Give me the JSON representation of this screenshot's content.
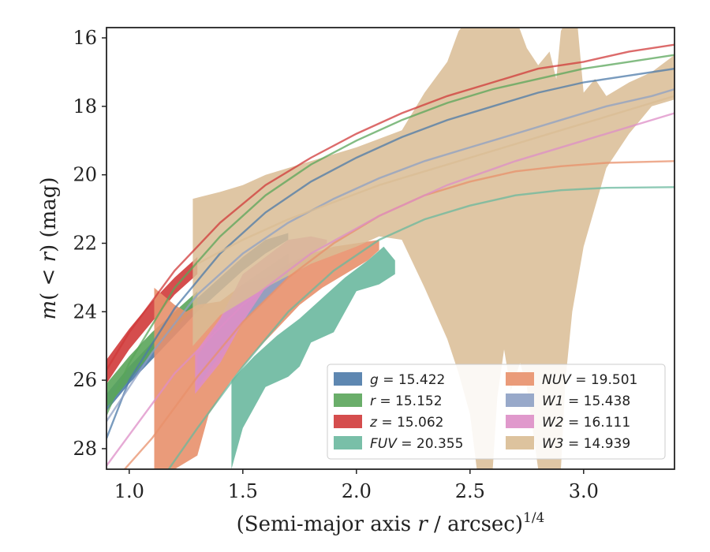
{
  "chart_data": {
    "type": "area",
    "title": "",
    "xlabel": {
      "pre": "(Semi-major axis ",
      "var": "r",
      "post": " / arcsec)",
      "sup": "1/4"
    },
    "ylabel": {
      "pre": "",
      "var": "m",
      "mid": "( < ",
      "var2": "r",
      "post": ") (mag)"
    },
    "xlim": [
      0.9,
      3.4
    ],
    "ylim": [
      28.6,
      15.7
    ],
    "y_inverted": true,
    "xticks": [
      1.0,
      1.5,
      2.0,
      2.5,
      3.0
    ],
    "xtick_labels": [
      "1.0",
      "1.5",
      "2.0",
      "2.5",
      "3.0"
    ],
    "yticks": [
      16,
      18,
      20,
      22,
      24,
      26,
      28
    ],
    "ytick_labels": [
      "16",
      "18",
      "20",
      "22",
      "24",
      "26",
      "28"
    ],
    "legend_position": "lower-right",
    "series": [
      {
        "name": "g = 15.422",
        "band": "g",
        "value": "= 15.422",
        "color": "#4c7aa8",
        "model": [
          [
            0.9,
            27.7
          ],
          [
            1.0,
            26.0
          ],
          [
            1.2,
            23.9
          ],
          [
            1.4,
            22.3
          ],
          [
            1.6,
            21.1
          ],
          [
            1.8,
            20.2
          ],
          [
            2.0,
            19.5
          ],
          [
            2.2,
            18.9
          ],
          [
            2.4,
            18.4
          ],
          [
            2.6,
            18.0
          ],
          [
            2.8,
            17.6
          ],
          [
            3.0,
            17.3
          ],
          [
            3.2,
            17.1
          ],
          [
            3.4,
            16.9
          ]
        ],
        "upper": [
          [
            0.9,
            26.4
          ],
          [
            1.0,
            25.6
          ],
          [
            1.1,
            24.9
          ],
          [
            1.2,
            24.3
          ],
          [
            1.3,
            23.6
          ],
          [
            1.4,
            23.0
          ],
          [
            1.5,
            22.4
          ],
          [
            1.6,
            21.9
          ],
          [
            1.7,
            21.7
          ]
        ],
        "lower": [
          [
            0.9,
            26.9
          ],
          [
            1.0,
            26.1
          ],
          [
            1.1,
            25.4
          ],
          [
            1.2,
            24.7
          ],
          [
            1.3,
            24.0
          ],
          [
            1.4,
            23.4
          ],
          [
            1.5,
            22.8
          ],
          [
            1.6,
            22.3
          ],
          [
            1.7,
            21.9
          ]
        ]
      },
      {
        "name": "r = 15.152",
        "band": "r",
        "value": "= 15.152",
        "color": "#5aa55a",
        "model": [
          [
            0.9,
            27.0
          ],
          [
            1.0,
            25.5
          ],
          [
            1.2,
            23.3
          ],
          [
            1.4,
            21.8
          ],
          [
            1.6,
            20.6
          ],
          [
            1.8,
            19.7
          ],
          [
            2.0,
            19.0
          ],
          [
            2.2,
            18.4
          ],
          [
            2.4,
            17.9
          ],
          [
            2.6,
            17.5
          ],
          [
            2.8,
            17.2
          ],
          [
            3.0,
            16.9
          ],
          [
            3.2,
            16.7
          ],
          [
            3.4,
            16.5
          ]
        ],
        "upper": [
          [
            0.9,
            26.1
          ],
          [
            1.0,
            25.3
          ],
          [
            1.1,
            24.6
          ],
          [
            1.2,
            24.0
          ],
          [
            1.3,
            23.4
          ]
        ],
        "lower": [
          [
            0.9,
            26.8
          ],
          [
            1.0,
            26.0
          ],
          [
            1.1,
            25.2
          ],
          [
            1.2,
            24.5
          ],
          [
            1.3,
            23.8
          ]
        ]
      },
      {
        "name": "z = 15.062",
        "band": "z",
        "value": "= 15.062",
        "color": "#d03a3a",
        "model": [
          [
            0.9,
            25.7
          ],
          [
            1.0,
            24.6
          ],
          [
            1.2,
            22.8
          ],
          [
            1.4,
            21.4
          ],
          [
            1.6,
            20.3
          ],
          [
            1.8,
            19.5
          ],
          [
            2.0,
            18.8
          ],
          [
            2.2,
            18.2
          ],
          [
            2.4,
            17.7
          ],
          [
            2.6,
            17.3
          ],
          [
            2.8,
            16.9
          ],
          [
            3.0,
            16.7
          ],
          [
            3.2,
            16.4
          ],
          [
            3.4,
            16.2
          ]
        ],
        "upper": [
          [
            0.9,
            25.4
          ],
          [
            1.0,
            24.5
          ],
          [
            1.1,
            23.7
          ],
          [
            1.2,
            23.0
          ],
          [
            1.3,
            22.4
          ]
        ],
        "lower": [
          [
            0.9,
            26.1
          ],
          [
            1.0,
            25.1
          ],
          [
            1.1,
            24.3
          ],
          [
            1.2,
            23.5
          ],
          [
            1.3,
            22.9
          ]
        ]
      },
      {
        "name": "FUV = 20.355",
        "band": "FUV",
        "value": "= 20.355",
        "color": "#6ab89e",
        "model": [
          [
            0.9,
            30.5
          ],
          [
            1.1,
            29.3
          ],
          [
            1.3,
            27.4
          ],
          [
            1.5,
            25.6
          ],
          [
            1.7,
            24.0
          ],
          [
            1.9,
            22.8
          ],
          [
            2.1,
            21.9
          ],
          [
            2.3,
            21.3
          ],
          [
            2.5,
            20.9
          ],
          [
            2.7,
            20.6
          ],
          [
            2.9,
            20.45
          ],
          [
            3.1,
            20.38
          ],
          [
            3.4,
            20.36
          ]
        ],
        "upper": [
          [
            1.45,
            26.0
          ],
          [
            1.55,
            25.3
          ],
          [
            1.65,
            24.7
          ],
          [
            1.75,
            24.2
          ],
          [
            1.85,
            23.6
          ],
          [
            1.95,
            23.0
          ],
          [
            2.05,
            22.5
          ],
          [
            2.12,
            22.1
          ],
          [
            2.17,
            22.5
          ]
        ],
        "lower": [
          [
            1.45,
            28.6
          ],
          [
            1.5,
            27.4
          ],
          [
            1.55,
            26.8
          ],
          [
            1.6,
            26.2
          ],
          [
            1.7,
            25.9
          ],
          [
            1.75,
            25.6
          ],
          [
            1.8,
            24.9
          ],
          [
            1.9,
            24.6
          ],
          [
            2.0,
            23.4
          ],
          [
            2.1,
            23.2
          ],
          [
            2.17,
            22.9
          ]
        ]
      },
      {
        "name": "NUV = 19.501",
        "band": "NUV",
        "value": "= 19.501",
        "color": "#e8906b",
        "model": [
          [
            0.9,
            29.2
          ],
          [
            1.1,
            27.7
          ],
          [
            1.3,
            25.9
          ],
          [
            1.5,
            24.3
          ],
          [
            1.7,
            23.0
          ],
          [
            1.9,
            22.0
          ],
          [
            2.1,
            21.2
          ],
          [
            2.3,
            20.6
          ],
          [
            2.5,
            20.2
          ],
          [
            2.7,
            19.9
          ],
          [
            2.9,
            19.75
          ],
          [
            3.1,
            19.65
          ],
          [
            3.4,
            19.6
          ]
        ],
        "upper": [
          [
            1.11,
            23.3
          ],
          [
            1.2,
            23.8
          ],
          [
            1.25,
            24.0
          ],
          [
            1.3,
            23.8
          ],
          [
            1.4,
            23.7
          ],
          [
            1.5,
            23.2
          ],
          [
            1.6,
            23.0
          ],
          [
            1.7,
            22.6
          ],
          [
            1.8,
            22.3
          ],
          [
            1.9,
            22.1
          ],
          [
            2.0,
            22.0
          ],
          [
            2.1,
            21.9
          ]
        ],
        "lower": [
          [
            1.11,
            28.6
          ],
          [
            1.2,
            28.6
          ],
          [
            1.3,
            28.2
          ],
          [
            1.35,
            27.0
          ],
          [
            1.45,
            26.0
          ],
          [
            1.55,
            25.2
          ],
          [
            1.65,
            24.5
          ],
          [
            1.75,
            23.8
          ],
          [
            1.85,
            23.3
          ],
          [
            1.95,
            22.9
          ],
          [
            2.05,
            22.5
          ],
          [
            2.1,
            22.2
          ]
        ]
      },
      {
        "name": "W1 = 15.438",
        "band": "W1",
        "value": "= 15.438",
        "color": "#8da0c4",
        "model": [
          [
            0.9,
            27.2
          ],
          [
            1.1,
            25.2
          ],
          [
            1.3,
            23.5
          ],
          [
            1.5,
            22.3
          ],
          [
            1.7,
            21.4
          ],
          [
            1.9,
            20.7
          ],
          [
            2.1,
            20.1
          ],
          [
            2.3,
            19.6
          ],
          [
            2.5,
            19.2
          ],
          [
            2.7,
            18.8
          ],
          [
            2.9,
            18.4
          ],
          [
            3.1,
            18.0
          ],
          [
            3.3,
            17.7
          ],
          [
            3.4,
            17.5
          ]
        ],
        "upper": [
          [
            1.3,
            25.3
          ],
          [
            1.5,
            23.2
          ],
          [
            1.7,
            22.3
          ]
        ],
        "lower": [
          [
            1.3,
            26.2
          ],
          [
            1.5,
            24.3
          ],
          [
            1.7,
            23.0
          ]
        ]
      },
      {
        "name": "W2 = 16.111",
        "band": "W2",
        "value": "= 16.111",
        "color": "#dd8ec7",
        "model": [
          [
            0.9,
            28.5
          ],
          [
            1.2,
            25.8
          ],
          [
            1.5,
            23.8
          ],
          [
            1.8,
            22.3
          ],
          [
            2.1,
            21.2
          ],
          [
            2.4,
            20.3
          ],
          [
            2.7,
            19.6
          ],
          [
            3.0,
            19.0
          ],
          [
            3.4,
            18.2
          ]
        ],
        "upper": [
          [
            1.29,
            25.2
          ],
          [
            1.4,
            24.2
          ],
          [
            1.5,
            22.9
          ],
          [
            1.6,
            22.4
          ],
          [
            1.7,
            21.9
          ],
          [
            1.8,
            21.8
          ],
          [
            1.87,
            21.9
          ]
        ],
        "lower": [
          [
            1.29,
            26.4
          ],
          [
            1.4,
            25.5
          ],
          [
            1.5,
            24.3
          ],
          [
            1.6,
            23.3
          ],
          [
            1.7,
            22.8
          ],
          [
            1.8,
            22.3
          ],
          [
            1.87,
            22.0
          ]
        ]
      },
      {
        "name": "W3 = 14.939",
        "band": "W3",
        "value": "= 14.939",
        "color": "#d9bc94",
        "model": [
          [
            1.3,
            22.6
          ],
          [
            1.5,
            21.9
          ],
          [
            1.7,
            21.3
          ],
          [
            1.9,
            20.8
          ],
          [
            2.1,
            20.3
          ],
          [
            2.3,
            19.9
          ],
          [
            2.5,
            19.5
          ],
          [
            2.7,
            19.1
          ],
          [
            2.9,
            18.7
          ],
          [
            3.1,
            18.3
          ],
          [
            3.3,
            17.9
          ],
          [
            3.4,
            17.7
          ]
        ],
        "upper": [
          [
            1.28,
            20.7
          ],
          [
            1.4,
            20.5
          ],
          [
            1.5,
            20.3
          ],
          [
            1.6,
            20.0
          ],
          [
            1.8,
            19.6
          ],
          [
            2.0,
            19.2
          ],
          [
            2.2,
            18.7
          ],
          [
            2.3,
            17.6
          ],
          [
            2.4,
            16.7
          ],
          [
            2.45,
            15.8
          ],
          [
            2.5,
            15.4
          ],
          [
            2.55,
            15.4
          ],
          [
            2.6,
            15.4
          ],
          [
            2.65,
            15.4
          ],
          [
            2.7,
            15.4
          ],
          [
            2.75,
            16.3
          ],
          [
            2.8,
            16.8
          ],
          [
            2.85,
            16.4
          ],
          [
            2.88,
            17.2
          ],
          [
            2.9,
            15.8
          ],
          [
            2.93,
            15.4
          ],
          [
            2.97,
            15.4
          ],
          [
            3.0,
            17.6
          ],
          [
            3.05,
            17.2
          ],
          [
            3.1,
            17.7
          ],
          [
            3.2,
            17.3
          ],
          [
            3.3,
            17.0
          ],
          [
            3.4,
            16.5
          ]
        ],
        "lower": [
          [
            1.28,
            25.0
          ],
          [
            1.4,
            24.1
          ],
          [
            1.6,
            23.3
          ],
          [
            1.8,
            22.6
          ],
          [
            2.0,
            22.1
          ],
          [
            2.1,
            21.8
          ],
          [
            2.2,
            21.9
          ],
          [
            2.3,
            23.3
          ],
          [
            2.4,
            24.8
          ],
          [
            2.45,
            25.8
          ],
          [
            2.5,
            27.0
          ],
          [
            2.53,
            28.6
          ],
          [
            2.6,
            28.6
          ],
          [
            2.62,
            26.5
          ],
          [
            2.65,
            25.1
          ],
          [
            2.68,
            26.3
          ],
          [
            2.72,
            25.5
          ],
          [
            2.75,
            26.2
          ],
          [
            2.8,
            28.6
          ],
          [
            2.9,
            28.6
          ],
          [
            2.92,
            26.0
          ],
          [
            2.95,
            24.0
          ],
          [
            3.0,
            22.1
          ],
          [
            3.1,
            19.8
          ],
          [
            3.2,
            18.8
          ],
          [
            3.3,
            18.0
          ],
          [
            3.4,
            17.8
          ]
        ]
      }
    ]
  }
}
